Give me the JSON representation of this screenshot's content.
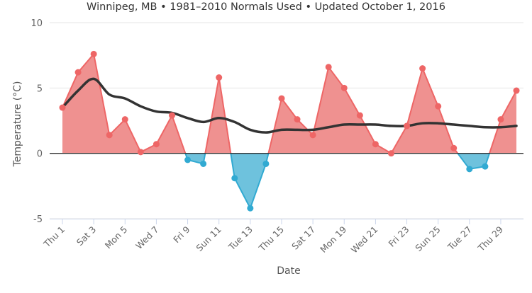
{
  "chart_data": {
    "type": "area",
    "title": "Winnipeg, MB • 1981–2010 Normals Used • Updated October 1, 2016",
    "xlabel": "Date",
    "ylabel": "Temperature (°C)",
    "ylim": [
      -5,
      10
    ],
    "yticks": [
      -5,
      0,
      5,
      10
    ],
    "grid": true,
    "legend": "none",
    "x": [
      "Thu 1",
      "Fri 2",
      "Sat 3",
      "Sun 4",
      "Mon 5",
      "Tue 6",
      "Wed 7",
      "Thu 8",
      "Fri 9",
      "Sat 10",
      "Sun 11",
      "Mon 12",
      "Tue 13",
      "Wed 14",
      "Thu 15",
      "Fri 16",
      "Sat 17",
      "Sun 18",
      "Mon 19",
      "Tue 20",
      "Wed 21",
      "Thu 22",
      "Fri 23",
      "Sat 24",
      "Sun 25",
      "Mon 26",
      "Tue 27",
      "Wed 28",
      "Thu 29",
      "Fri 30"
    ],
    "xtick_labels": [
      "Thu 1",
      "Sat 3",
      "Mon 5",
      "Wed 7",
      "Fri 9",
      "Sun 11",
      "Tue 13",
      "Thu 15",
      "Sat 17",
      "Mon 19",
      "Wed 21",
      "Fri 23",
      "Sun 25",
      "Tue 27",
      "Thu 29"
    ],
    "series": [
      {
        "values": [
          3.5,
          6.2,
          7.6,
          1.4,
          2.6,
          0.1,
          0.7,
          2.9,
          -0.5,
          -0.8,
          5.8,
          -1.9,
          -4.2,
          -0.8,
          4.2,
          2.6,
          1.4,
          6.6,
          5.0,
          2.9,
          0.7,
          0.0,
          2.1,
          6.5,
          3.6,
          0.4,
          -1.2,
          -1.0,
          2.6,
          4.8
        ]
      },
      {
        "values": [
          3.5,
          4.8,
          5.7,
          4.5,
          4.2,
          3.6,
          3.2,
          3.1,
          2.7,
          2.4,
          2.7,
          2.4,
          1.8,
          1.6,
          1.8,
          1.8,
          1.8,
          2.0,
          2.2,
          2.2,
          2.2,
          2.1,
          2.1,
          2.3,
          2.3,
          2.2,
          2.1,
          2.0,
          2.0,
          2.1
        ]
      }
    ],
    "colors": {
      "above": "#ee6666",
      "above_fill": "#ef9190",
      "below": "#31aad2",
      "below_fill": "#6ec2dd",
      "normal_line": "#333333",
      "grid": "#e6e6e6",
      "axis": "#ccd6eb",
      "zero_line": "#333333",
      "text": "#666666"
    }
  }
}
